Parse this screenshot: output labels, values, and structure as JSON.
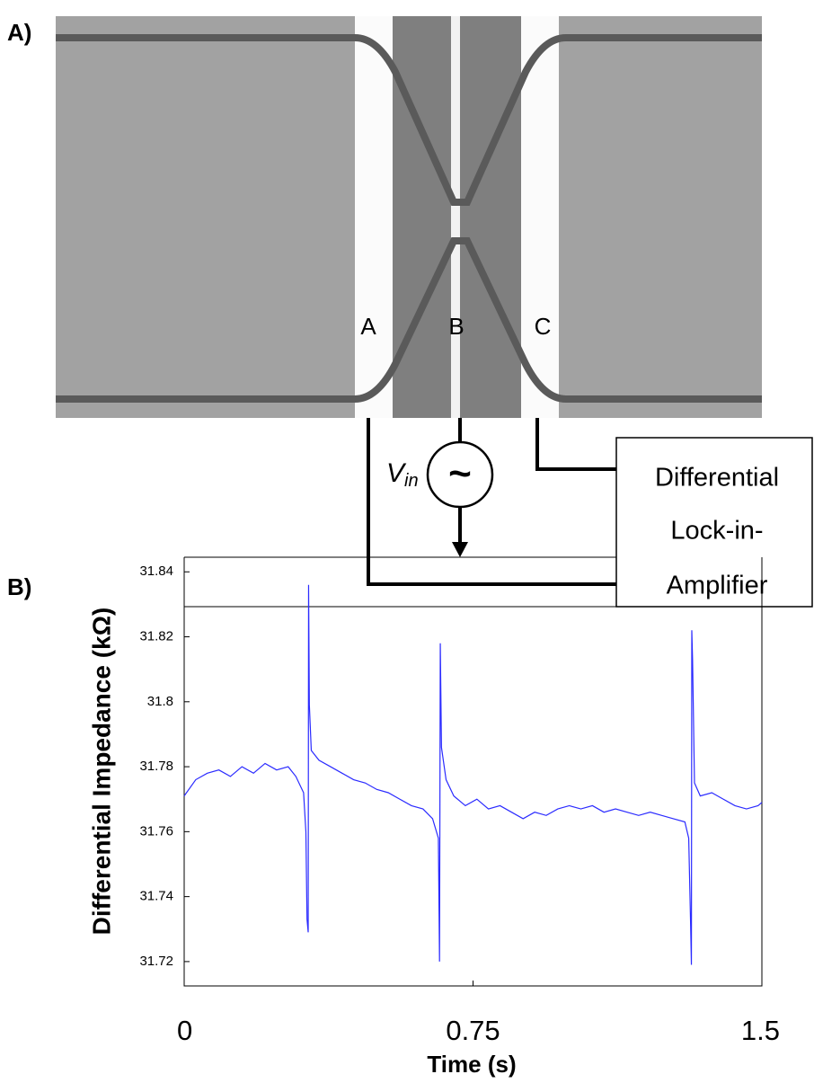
{
  "figure": {
    "panel_labels": [
      "A)",
      "B)"
    ],
    "electrodes": [
      "A",
      "B",
      "C"
    ],
    "source": {
      "symbol": "V",
      "subscript": "in",
      "sign": "~"
    },
    "amplifier_lines": [
      "Differential",
      "Lock-in-",
      "Amplifier"
    ]
  },
  "chart_data": {
    "type": "line",
    "xlabel": "Time (s)",
    "ylabel": "Differential Impedance (kΩ)",
    "color": "#2b2bff",
    "x": [
      0,
      0.03,
      0.06,
      0.09,
      0.12,
      0.15,
      0.18,
      0.21,
      0.24,
      0.27,
      0.29,
      0.31,
      0.316,
      0.319,
      0.322,
      0.323,
      0.325,
      0.33,
      0.35,
      0.38,
      0.41,
      0.44,
      0.47,
      0.5,
      0.53,
      0.56,
      0.59,
      0.62,
      0.645,
      0.66,
      0.663,
      0.665,
      0.668,
      0.68,
      0.7,
      0.73,
      0.76,
      0.79,
      0.82,
      0.85,
      0.88,
      0.91,
      0.94,
      0.97,
      1.0,
      1.03,
      1.06,
      1.09,
      1.12,
      1.15,
      1.18,
      1.21,
      1.24,
      1.27,
      1.3,
      1.31,
      1.315,
      1.317,
      1.318,
      1.32,
      1.325,
      1.34,
      1.37,
      1.4,
      1.43,
      1.46,
      1.49,
      1.5
    ],
    "values": [
      31.771,
      31.776,
      31.778,
      31.779,
      31.777,
      31.78,
      31.778,
      31.781,
      31.779,
      31.78,
      31.777,
      31.772,
      31.76,
      31.733,
      31.729,
      31.836,
      31.799,
      31.785,
      31.782,
      31.78,
      31.778,
      31.776,
      31.775,
      31.773,
      31.772,
      31.77,
      31.768,
      31.767,
      31.764,
      31.758,
      31.72,
      31.818,
      31.786,
      31.776,
      31.771,
      31.768,
      31.77,
      31.767,
      31.768,
      31.766,
      31.764,
      31.766,
      31.765,
      31.767,
      31.768,
      31.767,
      31.768,
      31.766,
      31.767,
      31.766,
      31.765,
      31.766,
      31.765,
      31.764,
      31.763,
      31.758,
      31.731,
      31.719,
      31.822,
      31.813,
      31.775,
      31.771,
      31.772,
      31.77,
      31.768,
      31.767,
      31.768,
      31.769
    ],
    "xlim": [
      0,
      1.5
    ],
    "xticks": [
      0,
      0.75,
      1.5
    ],
    "ylim": [
      31.7125,
      31.8445
    ],
    "yticks": [
      31.72,
      31.74,
      31.76,
      31.78,
      31.8,
      31.82,
      31.84
    ]
  }
}
